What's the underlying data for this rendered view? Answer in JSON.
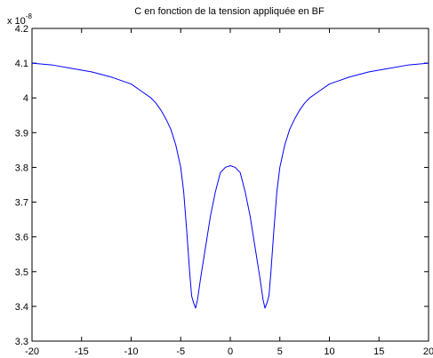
{
  "chart_data": {
    "type": "line",
    "title": "C en fonction de la tension appliquée en BF",
    "xlabel": "",
    "ylabel": "",
    "y_multiplier_base": "x 10",
    "y_multiplier_exponent": "-8",
    "xlim": [
      -20,
      20
    ],
    "ylim": [
      3.3,
      4.2
    ],
    "x_ticks": [
      -20,
      -15,
      -10,
      -5,
      0,
      5,
      10,
      15,
      20
    ],
    "x_tick_labels": [
      "-20",
      "-15",
      "-10",
      "-5",
      "0",
      "5",
      "10",
      "15",
      "20"
    ],
    "y_ticks": [
      3.3,
      3.4,
      3.5,
      3.6,
      3.7,
      3.8,
      3.9,
      4.0,
      4.1,
      4.2
    ],
    "y_tick_labels": [
      "3.3",
      "3.4",
      "3.5",
      "3.6",
      "3.7",
      "3.8",
      "3.9",
      "4",
      "4.1",
      "4.2"
    ],
    "grid": false,
    "series": [
      {
        "color": "#0000ff",
        "x": [
          -20,
          -18,
          -16,
          -14,
          -12,
          -11,
          -10,
          -9,
          -8,
          -7.5,
          -7,
          -6.5,
          -6,
          -5.5,
          -5,
          -4.7,
          -4.4,
          -4.1,
          -3.9,
          -3.7,
          -3.5,
          -3.3,
          -3.0,
          -2.5,
          -2.0,
          -1.5,
          -1.0,
          -0.5,
          0,
          0.5,
          1.0,
          1.5,
          2.0,
          2.5,
          3.0,
          3.3,
          3.5,
          3.7,
          3.9,
          4.1,
          4.4,
          4.7,
          5,
          5.5,
          6,
          6.5,
          7,
          7.5,
          8,
          9,
          10,
          11,
          12,
          14,
          16,
          18,
          20
        ],
        "y": [
          4.1,
          4.095,
          4.085,
          4.075,
          4.06,
          4.05,
          4.04,
          4.02,
          4.0,
          3.985,
          3.965,
          3.94,
          3.91,
          3.865,
          3.8,
          3.73,
          3.62,
          3.5,
          3.43,
          3.41,
          3.395,
          3.42,
          3.48,
          3.57,
          3.66,
          3.73,
          3.785,
          3.8,
          3.805,
          3.8,
          3.785,
          3.73,
          3.66,
          3.57,
          3.48,
          3.42,
          3.395,
          3.41,
          3.43,
          3.5,
          3.62,
          3.73,
          3.8,
          3.865,
          3.91,
          3.94,
          3.965,
          3.985,
          4.0,
          4.02,
          4.04,
          4.05,
          4.06,
          4.075,
          4.085,
          4.095,
          4.1
        ]
      }
    ]
  }
}
